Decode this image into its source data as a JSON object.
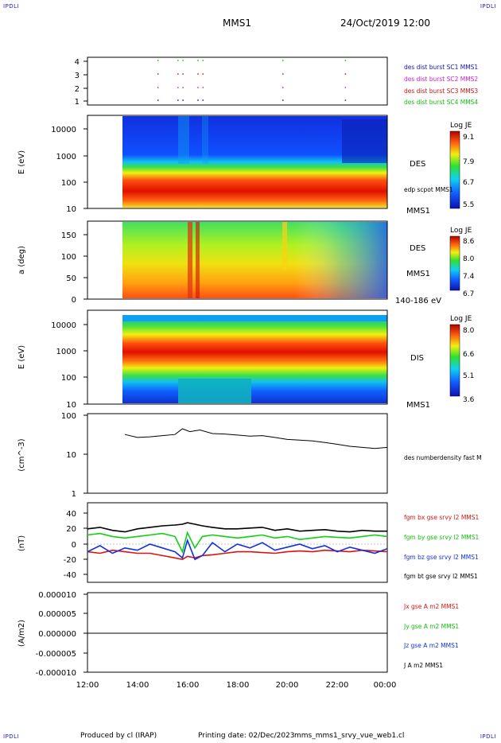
{
  "corners": {
    "top_left": "IPDLI",
    "top_right": "IPDLI",
    "bottom_left": "IPDLI",
    "bottom_right": "IPDLI"
  },
  "header": {
    "mission": "MMS1",
    "datetime": "24/Oct/2019 12:00"
  },
  "footer": {
    "produced_by": "Produced by cl (IRAP)",
    "printing_date": "Printing date: 02/Dec/2023",
    "filename": "mms_mms1_srvy_vue_web1.cl"
  },
  "time_axis": {
    "ticks": [
      "12:00",
      "14:00",
      "16:00",
      "18:00",
      "20:00",
      "22:00",
      "00:00"
    ]
  },
  "colors": {
    "sc1": "#1010d0",
    "sc2": "#d020d0",
    "sc3": "#d01010",
    "sc4": "#10c010",
    "bx": "#e01010",
    "by": "#10d010",
    "bz": "#1030e0",
    "bt": "#000000"
  },
  "panels": {
    "burst": {
      "yticks": [
        "1",
        "2",
        "3",
        "4"
      ],
      "legend": [
        "des dist burst SC1 MMS1",
        "des dist burst SC2 MMS2",
        "des dist burst SC3 MMS3",
        "des dist burst SC4 MMS4"
      ]
    },
    "des_energy": {
      "ylabel": "E (eV)",
      "yticks": [
        "10",
        "100",
        "1000",
        "10000"
      ],
      "colorbar_title": "Log JE",
      "colorbar_ticks": [
        "9.1",
        "7.9",
        "6.7",
        "5.5"
      ],
      "right_label": "DES",
      "overlay_label": "edp scpot MMS1",
      "instrument": "MMS1"
    },
    "des_pitch": {
      "ylabel": "a (deg)",
      "yticks": [
        "0",
        "50",
        "100",
        "150"
      ],
      "colorbar_title": "Log JE",
      "colorbar_ticks": [
        "8.6",
        "8.0",
        "7.4",
        "6.7"
      ],
      "right_label": "DES",
      "instrument": "MMS1",
      "energy_range": "140-186 eV"
    },
    "dis_energy": {
      "ylabel": "E (eV)",
      "yticks": [
        "10",
        "100",
        "1000",
        "10000"
      ],
      "colorbar_title": "Log JE",
      "colorbar_ticks": [
        "8.0",
        "6.6",
        "5.1",
        "3.6"
      ],
      "right_label": "DIS",
      "instrument": "MMS1"
    },
    "density": {
      "ylabel": "(cm^-3)",
      "yticks": [
        "1",
        "10",
        "100"
      ],
      "legend": "des numberdensity fast M"
    },
    "bfield": {
      "ylabel": "(nT)",
      "yticks": [
        "-40",
        "-20",
        "0",
        "20",
        "40"
      ],
      "legend": [
        "fgm bx gse srvy l2 MMS1",
        "fgm by gse srvy l2 MMS1",
        "fgm bz gse srvy l2 MMS1",
        "fgm bt gse srvy l2 MMS1"
      ]
    },
    "current": {
      "ylabel": "(A/m2)",
      "yticks": [
        "-0.000010",
        "-0.000005",
        "0.000000",
        "0.000005",
        "0.000010"
      ],
      "legend": [
        "Jx gse A m2 MMS1",
        "Jy gse A m2 MMS1",
        "Jz gse A m2 MMS1",
        "J A m2 MMS1"
      ]
    }
  },
  "chart_data": {
    "type": "line",
    "x_unit": "hours since 24/Oct/2019 12:00",
    "xlim": [
      0,
      12
    ],
    "burst_intervals": {
      "times": [
        2.8,
        3.6,
        3.8,
        4.4,
        4.6,
        7.8,
        10.3
      ],
      "spacecraft": [
        1,
        2,
        3,
        4
      ]
    },
    "density": {
      "ylim": [
        1,
        100
      ],
      "log": true,
      "x": [
        1.5,
        2.0,
        2.5,
        3.0,
        3.5,
        3.8,
        4.1,
        4.5,
        5.0,
        5.5,
        6.0,
        6.5,
        7.0,
        7.5,
        8.0,
        8.5,
        9.0,
        9.5,
        10.0,
        10.5,
        11.0,
        11.5,
        12.0
      ],
      "y": [
        32,
        27,
        28,
        30,
        32,
        45,
        38,
        42,
        34,
        33,
        31,
        29,
        30,
        27,
        24,
        23,
        22,
        20,
        18,
        16,
        15,
        14,
        15
      ]
    },
    "bfield": {
      "ylim": [
        -50,
        50
      ],
      "x": [
        0,
        0.5,
        1.0,
        1.5,
        2.0,
        2.5,
        3.0,
        3.5,
        3.8,
        4.0,
        4.3,
        4.6,
        5.0,
        5.5,
        6.0,
        6.5,
        7.0,
        7.5,
        8.0,
        8.5,
        9.0,
        9.5,
        10.0,
        10.5,
        11.0,
        11.5,
        12.0
      ],
      "series": [
        {
          "name": "fgm bx gse srvy l2 MMS1",
          "color": "#e01010",
          "values": [
            -10,
            -12,
            -8,
            -10,
            -12,
            -12,
            -15,
            -18,
            -20,
            -16,
            -18,
            -15,
            -14,
            -12,
            -10,
            -10,
            -11,
            -12,
            -10,
            -9,
            -10,
            -8,
            -9,
            -10,
            -8,
            -9,
            -10
          ]
        },
        {
          "name": "fgm by gse srvy l2 MMS1",
          "color": "#10d010",
          "values": [
            12,
            14,
            10,
            8,
            10,
            12,
            14,
            10,
            -10,
            15,
            -5,
            10,
            12,
            10,
            8,
            10,
            12,
            8,
            10,
            6,
            8,
            10,
            9,
            8,
            10,
            12,
            10
          ]
        },
        {
          "name": "fgm bz gse srvy l2 MMS1",
          "color": "#1030e0",
          "values": [
            -10,
            -2,
            -12,
            -5,
            -8,
            0,
            -5,
            -10,
            -18,
            5,
            -20,
            -15,
            2,
            -10,
            0,
            -5,
            2,
            -8,
            -4,
            0,
            -6,
            -2,
            -10,
            -4,
            -8,
            -12,
            -6
          ]
        },
        {
          "name": "fgm bt gse srvy l2 MMS1",
          "color": "#000000",
          "values": [
            20,
            22,
            18,
            16,
            20,
            22,
            24,
            25,
            26,
            28,
            26,
            24,
            22,
            20,
            20,
            21,
            22,
            18,
            20,
            17,
            18,
            19,
            17,
            16,
            18,
            17,
            17
          ]
        }
      ]
    },
    "current": {
      "ylim": [
        -1e-05,
        1e-05
      ],
      "series": [
        {
          "name": "Jx gse A m2 MMS1",
          "color": "#e01010",
          "value": 0
        },
        {
          "name": "Jy gse A m2 MMS1",
          "color": "#10d010",
          "value": 0
        },
        {
          "name": "Jz gse A m2 MMS1",
          "color": "#1030e0",
          "value": 0
        },
        {
          "name": "J A m2 MMS1",
          "color": "#000000",
          "value": 0
        }
      ]
    }
  }
}
